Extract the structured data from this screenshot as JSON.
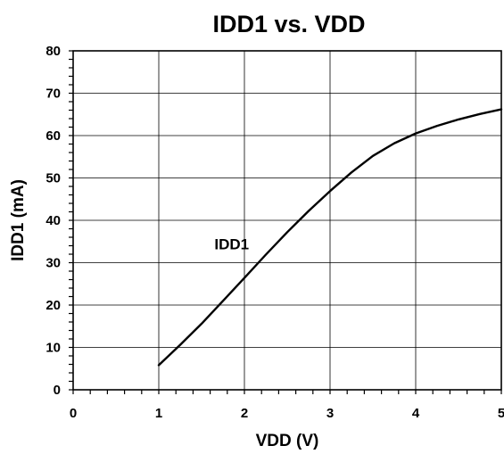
{
  "chart_data": {
    "type": "line",
    "title": "IDD1 vs. VDD",
    "xlabel": "VDD (V)",
    "ylabel": "IDD1 (mA)",
    "xlim": [
      0,
      5
    ],
    "ylim": [
      0,
      80
    ],
    "xticks": [
      0,
      1,
      2,
      3,
      4,
      5
    ],
    "yticks": [
      0,
      10,
      20,
      30,
      40,
      50,
      60,
      70,
      80
    ],
    "grid": true,
    "series": [
      {
        "name": "IDD1",
        "x": [
          1.0,
          1.25,
          1.5,
          1.75,
          2.0,
          2.25,
          2.5,
          2.75,
          3.0,
          3.25,
          3.5,
          3.75,
          4.0,
          4.25,
          4.5,
          4.75,
          5.0
        ],
        "y": [
          5.8,
          10.6,
          15.6,
          21.0,
          26.4,
          31.9,
          37.2,
          42.2,
          46.9,
          51.3,
          55.2,
          58.2,
          60.5,
          62.3,
          63.8,
          65.1,
          66.2
        ]
      }
    ],
    "annotations": [
      {
        "text": "IDD1",
        "x": 1.65,
        "y": 33.2
      }
    ]
  }
}
